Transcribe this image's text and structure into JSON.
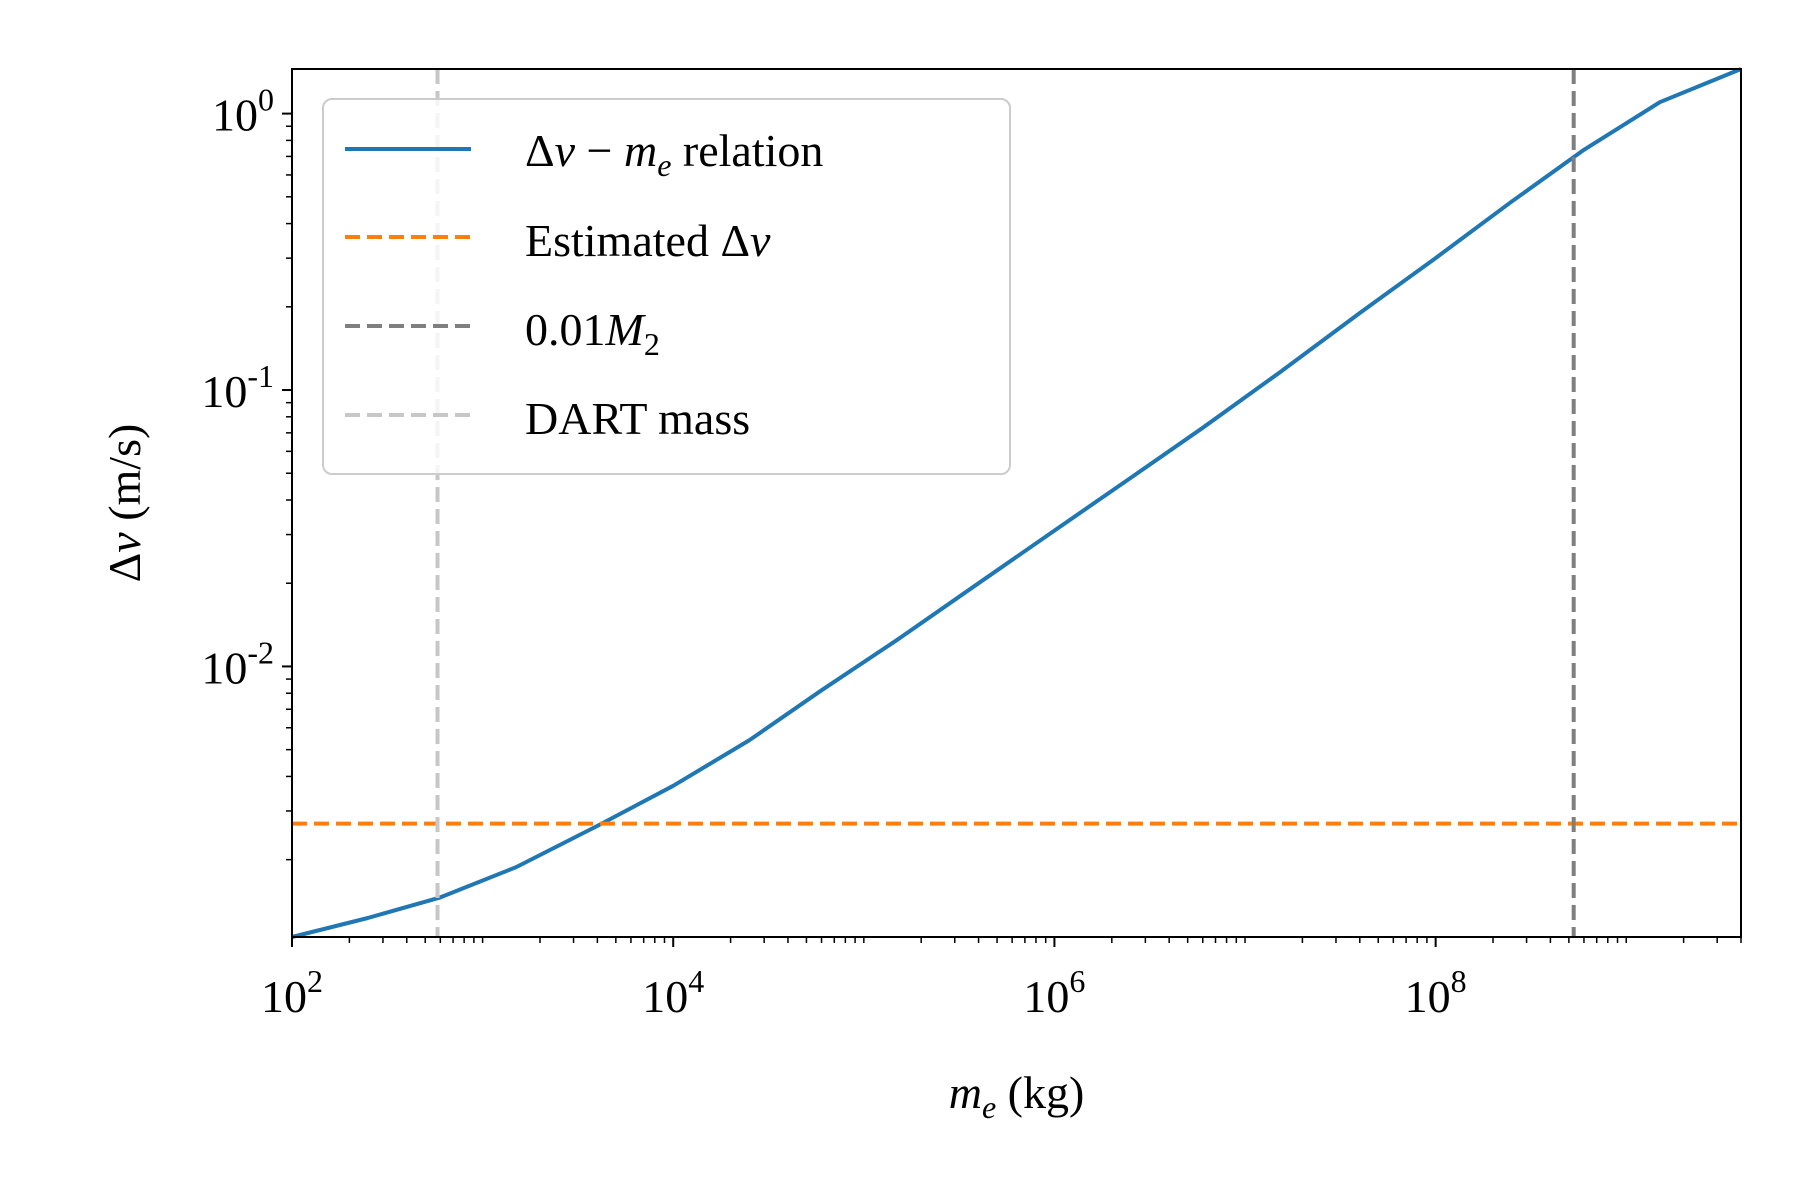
{
  "chart_data": {
    "type": "line",
    "x_scale": "log",
    "y_scale": "log",
    "xlim": [
      100,
      4000000000
    ],
    "ylim": [
      0.00105,
      1.45
    ],
    "xlabel": {
      "main": "m",
      "sub": "e",
      "unit": "(kg)"
    },
    "ylabel": {
      "delta": "Δ",
      "var": "v",
      "unit": "(m/s)"
    },
    "x_ticks": [
      {
        "value": 100,
        "base": "10",
        "exp": "2"
      },
      {
        "value": 10000,
        "base": "10",
        "exp": "4"
      },
      {
        "value": 1000000,
        "base": "10",
        "exp": "6"
      },
      {
        "value": 100000000,
        "base": "10",
        "exp": "8"
      }
    ],
    "y_ticks": [
      {
        "value": 0.01,
        "base": "10",
        "exp": "-2"
      },
      {
        "value": 0.1,
        "base": "10",
        "exp": "-1"
      },
      {
        "value": 1,
        "base": "10",
        "exp": "0"
      }
    ],
    "grid": false,
    "legend_position": "top-left",
    "series": [
      {
        "name": "Δv − m_e relation",
        "legend": {
          "pre": "Δ",
          "v": "v",
          "minus": " − ",
          "m": "m",
          "sub": "e",
          "post": " relation"
        },
        "style": "solid",
        "color": "#1f77b4",
        "x": [
          100,
          250,
          600,
          1500,
          4000,
          10000,
          25000,
          60000,
          150000,
          400000,
          1000000,
          2500000,
          6000000,
          15000000,
          40000000,
          100000000,
          250000000,
          600000000,
          1500000000,
          4000000000
        ],
        "y": [
          0.00105,
          0.00123,
          0.00146,
          0.00188,
          0.00265,
          0.0037,
          0.0054,
          0.0082,
          0.0125,
          0.02,
          0.031,
          0.048,
          0.073,
          0.115,
          0.19,
          0.3,
          0.48,
          0.74,
          1.1,
          1.45
        ]
      },
      {
        "name": "Estimated Δv",
        "legend": {
          "pre": "Estimated Δ",
          "v": "v"
        },
        "style": "dashed",
        "orientation": "horizontal",
        "color": "#ff7f0e",
        "y": 0.0027
      },
      {
        "name": "0.01M₂",
        "legend": {
          "pre": "0.01",
          "m": "M",
          "sub": "2"
        },
        "style": "dashed",
        "orientation": "vertical",
        "color": "#7f7f7f",
        "x": 530000000
      },
      {
        "name": "DART mass",
        "legend": {
          "pre": "DART mass"
        },
        "style": "dashed",
        "orientation": "vertical",
        "color": "#c7c7c7",
        "x": 580
      }
    ]
  }
}
